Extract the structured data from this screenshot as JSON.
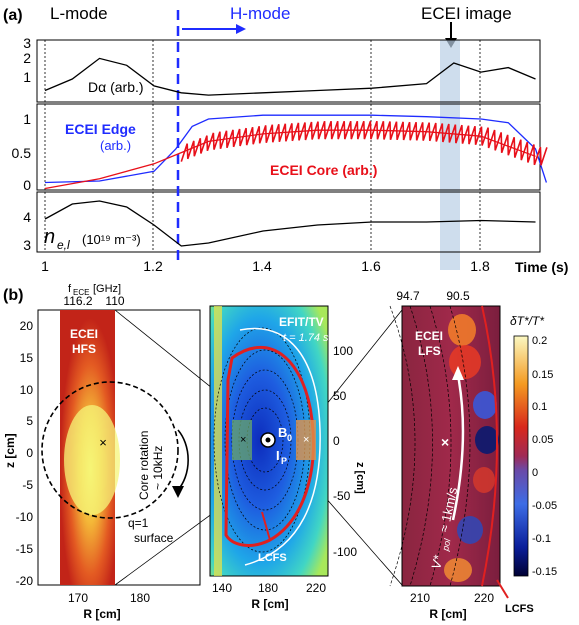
{
  "panel_a": {
    "label": "(a)",
    "lmode": "L-mode",
    "hmode": "H-mode",
    "ecei_image": "ECEI image",
    "da_label": "Dα (arb.)",
    "ecei_edge": "ECEI Edge",
    "ecei_edge_unit": "(arb.)",
    "ecei_core": "ECEI Core (arb.)",
    "ne_label": "n",
    "ne_sub": "e,l",
    "ne_unit": "(10¹⁹ m⁻³)",
    "time_label": "Time (s)",
    "x_ticks": [
      "1",
      "1.2",
      "1.4",
      "1.6",
      "1.8"
    ],
    "y1_ticks": [
      "3",
      "2",
      "1"
    ],
    "y2_ticks": [
      "1",
      "0.5",
      "0"
    ],
    "y3_ticks": [
      "4",
      "3"
    ]
  },
  "panel_b": {
    "label": "(b)",
    "fece_label": "f",
    "fece_sub": "ECE",
    "fece_unit": "[GHz]",
    "fece_ticks_left": [
      "116.2",
      "110"
    ],
    "fece_ticks_right": [
      "94.7",
      "90.5"
    ],
    "hfs_title": "ECEI",
    "hfs_sub": "HFS",
    "core_rotation": "Core rotation",
    "core_rotation_val": "~ 10kHz",
    "q1": "q=1",
    "q1_sub": "surface",
    "efit": "EFIT/TV",
    "efit_time": "t = 1.74 s",
    "b0": "B",
    "b0_sub": "0",
    "ip": "I",
    "ip_sub": "P",
    "lcfs": "LCFS",
    "lfs_title": "ECEI",
    "lfs_sub": "LFS",
    "vpol": "V*",
    "vpol_sub": "pol",
    "vpol_val": "≈ 1km/s",
    "lcfs_right": "LCFS",
    "z_label": "z [cm]",
    "r_label": "R [cm]",
    "cbar_title": "δT*/T*",
    "left_y_ticks": [
      "20",
      "15",
      "10",
      "5",
      "0",
      "-5",
      "-10",
      "-15",
      "-20"
    ],
    "left_x_ticks": [
      "170",
      "180"
    ],
    "mid_x_ticks": [
      "140",
      "180",
      "220"
    ],
    "mid_z_ticks": [
      "100",
      "50",
      "0",
      "-50",
      "-100"
    ],
    "right_x_ticks": [
      "210",
      "220"
    ],
    "cbar_ticks": [
      "0.2",
      "0.15",
      "0.1",
      "0.05",
      "0",
      "-0.05",
      "-0.1",
      "-0.15"
    ]
  },
  "colors": {
    "ecei_edge": "#1f2cff",
    "ecei_core": "#e8101a",
    "hmode_arrow": "#1f2cff",
    "highlight": "#b9cfe6"
  },
  "chart_data": [
    {
      "type": "line",
      "title": "",
      "series": [
        {
          "name": "Dα (arb.)",
          "x": [
            1.0,
            1.05,
            1.1,
            1.15,
            1.2,
            1.25,
            1.3,
            1.4,
            1.5,
            1.6,
            1.7,
            1.75,
            1.8,
            1.85,
            1.9
          ],
          "values": [
            1.0,
            1.5,
            2.4,
            2.1,
            1.2,
            0.9,
            0.8,
            0.9,
            1.0,
            1.1,
            1.3,
            2.2,
            1.8,
            2.0,
            1.5
          ]
        }
      ],
      "xlim": [
        0.98,
        1.93
      ],
      "ylim": [
        0.5,
        3.2
      ],
      "xlabel": "Time (s)"
    },
    {
      "type": "line",
      "series": [
        {
          "name": "ECEI Edge",
          "x": [
            1.0,
            1.1,
            1.2,
            1.24,
            1.27,
            1.3,
            1.4,
            1.5,
            1.6,
            1.7,
            1.8,
            1.85,
            1.9,
            1.92
          ],
          "values": [
            0.1,
            0.12,
            0.25,
            0.55,
            0.85,
            0.95,
            1.0,
            1.0,
            1.0,
            0.98,
            0.95,
            0.9,
            0.55,
            0.1
          ]
        },
        {
          "name": "ECEI Core (arb.)",
          "x": [
            1.0,
            1.1,
            1.2,
            1.25,
            1.3,
            1.4,
            1.5,
            1.6,
            1.7,
            1.8,
            1.9
          ],
          "values": [
            0.02,
            0.15,
            0.35,
            0.5,
            0.65,
            0.75,
            0.8,
            0.8,
            0.78,
            0.72,
            0.45
          ]
        }
      ],
      "xlim": [
        0.98,
        1.93
      ],
      "ylim": [
        0,
        1.15
      ]
    },
    {
      "type": "line",
      "series": [
        {
          "name": "n_e,l",
          "x": [
            1.0,
            1.05,
            1.1,
            1.15,
            1.2,
            1.25,
            1.3,
            1.4,
            1.5,
            1.6,
            1.7,
            1.8,
            1.9
          ],
          "values": [
            3.8,
            4.3,
            4.4,
            4.2,
            3.6,
            2.9,
            3.0,
            3.4,
            3.6,
            3.7,
            3.7,
            3.75,
            3.7
          ]
        }
      ],
      "xlim": [
        0.98,
        1.93
      ],
      "ylim": [
        2.7,
        4.7
      ]
    }
  ]
}
